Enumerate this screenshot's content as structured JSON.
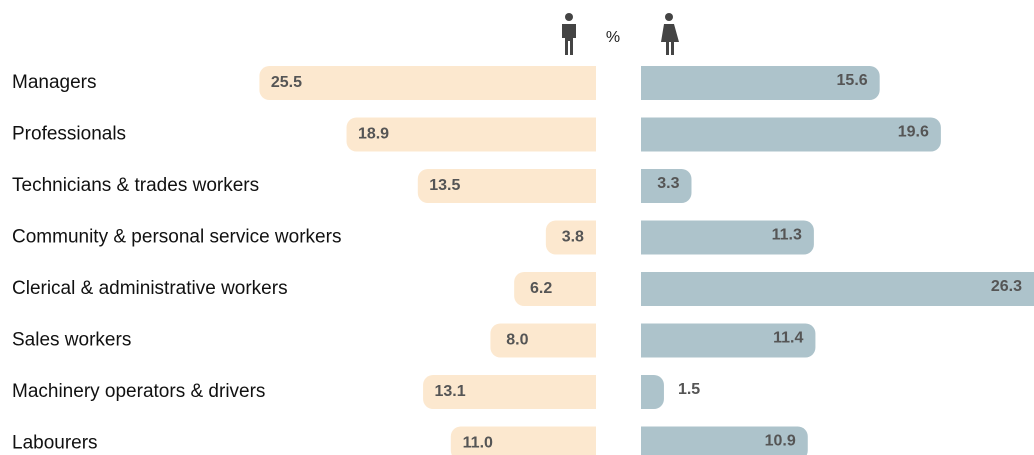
{
  "chart_data": {
    "type": "butterfly",
    "unit": "%",
    "categories": [
      "Managers",
      "Professionals",
      "Technicians & trades workers",
      "Community & personal service workers",
      "Clerical & administrative workers",
      "Sales workers",
      "Machinery operators & drivers",
      "Labourers"
    ],
    "series": [
      {
        "color": "#fce8cf",
        "values": [
          25.5,
          18.9,
          13.5,
          3.8,
          6.2,
          8.0,
          13.1,
          11.0
        ],
        "value_labels": [
          "25.5",
          "18.9",
          "13.5",
          "3.8",
          "6.2",
          "8.0",
          "13.1",
          "11.0"
        ]
      },
      {
        "color": "#adc3cb",
        "values": [
          15.6,
          19.6,
          3.3,
          11.3,
          26.3,
          11.4,
          1.5,
          10.9
        ],
        "value_labels": [
          "15.6",
          "19.6",
          "3.3",
          "11.3",
          "26.3",
          "11.4",
          "1.5",
          "10.9"
        ]
      }
    ]
  }
}
